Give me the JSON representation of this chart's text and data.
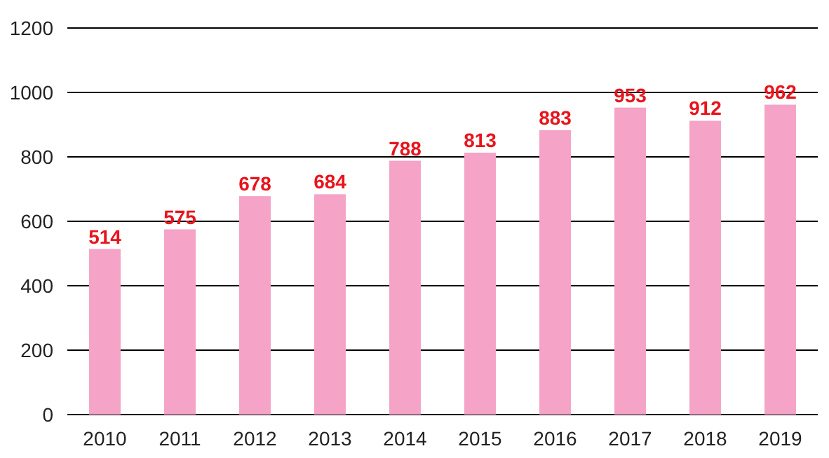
{
  "chart_data": {
    "type": "bar",
    "categories": [
      "2010",
      "2011",
      "2012",
      "2013",
      "2014",
      "2015",
      "2016",
      "2017",
      "2018",
      "2019"
    ],
    "values": [
      514,
      575,
      678,
      684,
      788,
      813,
      883,
      953,
      912,
      962
    ],
    "color": "#f5a3c6",
    "ylim": [
      0,
      1200
    ],
    "yticks": [
      0,
      200,
      400,
      600,
      800,
      1000,
      1200
    ],
    "grid": "y",
    "data_labels": true
  }
}
